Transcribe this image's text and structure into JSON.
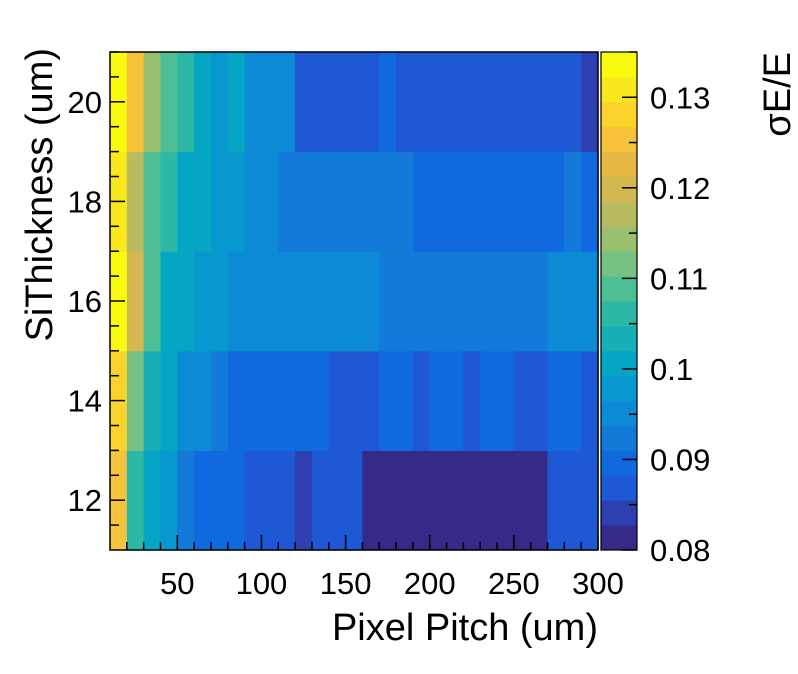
{
  "chart_data": {
    "type": "heatmap",
    "xlabel": "Pixel Pitch (um)",
    "ylabel": "SiThickness (um)",
    "zlabel": "σE/E",
    "x_bin_edges": [
      10,
      20,
      30,
      40,
      50,
      60,
      70,
      80,
      90,
      100,
      110,
      120,
      130,
      140,
      150,
      160,
      170,
      180,
      190,
      200,
      210,
      220,
      230,
      240,
      250,
      260,
      270,
      280,
      290,
      300
    ],
    "y_bin_edges": [
      11,
      13,
      15,
      17,
      19,
      21
    ],
    "xlim": [
      10,
      300
    ],
    "ylim": [
      11,
      21
    ],
    "zlim": [
      0.08,
      0.135
    ],
    "x_ticks": [
      50,
      100,
      150,
      200,
      250,
      300
    ],
    "y_ticks": [
      12,
      14,
      16,
      18,
      20
    ],
    "z_ticks": [
      0.08,
      0.09,
      0.1,
      0.11,
      0.12,
      0.13
    ],
    "z_tick_labels": [
      "0.08",
      "0.09",
      "0.1",
      "0.11",
      "0.12",
      "0.13"
    ],
    "colormap": [
      "#352a87",
      "#2e3fb0",
      "#1f58d4",
      "#1069de",
      "#137ad9",
      "#0d8ad6",
      "#0798d0",
      "#05a6c4",
      "#17aeb6",
      "#2db8a5",
      "#4ebe94",
      "#75c082",
      "#98c06f",
      "#b8bc5e",
      "#d3b750",
      "#e8b845",
      "#f6c33a",
      "#fbd32b",
      "#f9e81c",
      "#f9fb0e"
    ],
    "values": [
      [
        0.125,
        0.105,
        0.1,
        0.097,
        0.092,
        0.09,
        0.09,
        0.09,
        0.088,
        0.088,
        0.088,
        0.085,
        0.088,
        0.088,
        0.088,
        0.08,
        0.08,
        0.08,
        0.08,
        0.08,
        0.08,
        0.08,
        0.08,
        0.08,
        0.08,
        0.08,
        0.087,
        0.087,
        0.087
      ],
      [
        0.128,
        0.112,
        0.104,
        0.1,
        0.096,
        0.094,
        0.092,
        0.09,
        0.09,
        0.09,
        0.09,
        0.09,
        0.09,
        0.087,
        0.087,
        0.087,
        0.09,
        0.09,
        0.087,
        0.09,
        0.09,
        0.087,
        0.09,
        0.09,
        0.087,
        0.087,
        0.09,
        0.09,
        0.087
      ],
      [
        0.135,
        0.12,
        0.11,
        0.102,
        0.1,
        0.098,
        0.098,
        0.095,
        0.095,
        0.095,
        0.095,
        0.095,
        0.095,
        0.095,
        0.095,
        0.095,
        0.093,
        0.093,
        0.093,
        0.093,
        0.093,
        0.093,
        0.093,
        0.093,
        0.093,
        0.093,
        0.095,
        0.095,
        0.095
      ],
      [
        0.13,
        0.118,
        0.11,
        0.105,
        0.1,
        0.1,
        0.098,
        0.098,
        0.096,
        0.096,
        0.093,
        0.093,
        0.093,
        0.093,
        0.093,
        0.093,
        0.093,
        0.093,
        0.09,
        0.09,
        0.09,
        0.09,
        0.09,
        0.09,
        0.09,
        0.09,
        0.09,
        0.093,
        0.09
      ],
      [
        0.135,
        0.125,
        0.115,
        0.108,
        0.105,
        0.1,
        0.098,
        0.1,
        0.096,
        0.096,
        0.095,
        0.088,
        0.088,
        0.088,
        0.088,
        0.088,
        0.09,
        0.088,
        0.088,
        0.088,
        0.088,
        0.088,
        0.088,
        0.088,
        0.088,
        0.088,
        0.088,
        0.088,
        0.085
      ]
    ]
  }
}
